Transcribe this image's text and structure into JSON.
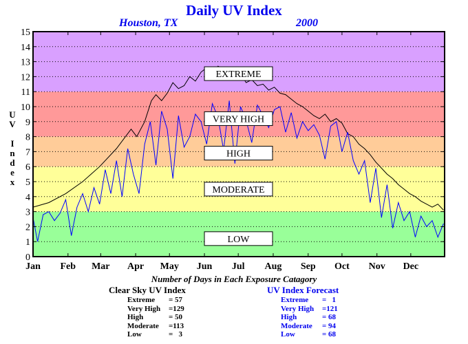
{
  "header": {
    "title": "Daily UV Index",
    "city": "Houston, TX",
    "year": "2000"
  },
  "axes": {
    "ylabel": "UV Index"
  },
  "chart_data": {
    "type": "line",
    "title": "Daily UV Index",
    "subtitle": "Houston, TX   2000",
    "xlabel": "",
    "ylabel": "UV Index",
    "x_tick_labels": [
      "Jan",
      "Feb",
      "Mar",
      "Apr",
      "May",
      "Jun",
      "Jul",
      "Aug",
      "Sep",
      "Oct",
      "Nov",
      "Dec"
    ],
    "y_ticks": [
      0,
      1,
      2,
      3,
      4,
      5,
      6,
      7,
      8,
      9,
      10,
      11,
      12,
      13,
      14,
      15
    ],
    "ylim": [
      0,
      15
    ],
    "xlim_days": [
      1,
      366
    ],
    "grid": true,
    "bands": [
      {
        "label": "LOW",
        "range": [
          0,
          3
        ],
        "color": "#99ff99"
      },
      {
        "label": "MODERATE",
        "range": [
          3,
          6
        ],
        "color": "#ffff99"
      },
      {
        "label": "HIGH",
        "range": [
          6,
          8
        ],
        "color": "#ffcc99"
      },
      {
        "label": "VERY HIGH",
        "range": [
          8,
          11
        ],
        "color": "#ff9999"
      },
      {
        "label": "EXTREME",
        "range": [
          11,
          15
        ],
        "color": "#d9a0ff"
      }
    ],
    "band_label_values": [
      1.2,
      4.5,
      6.9,
      9.2,
      12.2
    ],
    "series": [
      {
        "color": "#000000",
        "x": [
          1,
          15,
          30,
          45,
          60,
          75,
          88,
          93,
          100,
          106,
          110,
          115,
          120,
          125,
          130,
          135,
          140,
          145,
          150,
          155,
          160,
          165,
          170,
          175,
          180,
          185,
          190,
          195,
          200,
          205,
          210,
          215,
          220,
          225,
          230,
          235,
          240,
          245,
          250,
          255,
          260,
          265,
          270,
          275,
          280,
          285,
          290,
          295,
          300,
          305,
          310,
          315,
          320,
          325,
          330,
          335,
          340,
          345,
          350,
          355,
          360,
          365
        ],
        "values": [
          3.3,
          3.6,
          4.2,
          5.0,
          6.0,
          7.2,
          8.5,
          8.0,
          9.0,
          10.4,
          10.8,
          10.4,
          10.9,
          11.6,
          11.2,
          11.4,
          12.0,
          11.7,
          12.3,
          12.6,
          12.2,
          12.7,
          12.5,
          12.6,
          12.0,
          12.2,
          11.6,
          11.8,
          11.4,
          11.5,
          11.1,
          11.3,
          10.9,
          10.8,
          10.5,
          10.2,
          10.0,
          9.7,
          9.4,
          9.2,
          9.5,
          9.0,
          9.2,
          8.9,
          8.2,
          8.0,
          7.5,
          7.2,
          6.8,
          6.3,
          5.9,
          5.5,
          5.2,
          4.8,
          4.5,
          4.2,
          4.0,
          3.7,
          3.5,
          3.3,
          3.5,
          3.1
        ]
      },
      {
        "color": "#0000ff",
        "x": [
          1,
          5,
          10,
          15,
          20,
          25,
          30,
          35,
          40,
          45,
          50,
          55,
          60,
          65,
          70,
          75,
          80,
          85,
          90,
          95,
          100,
          105,
          110,
          115,
          120,
          125,
          130,
          135,
          140,
          145,
          150,
          155,
          160,
          165,
          170,
          175,
          180,
          185,
          190,
          195,
          200,
          205,
          210,
          215,
          220,
          225,
          230,
          235,
          240,
          245,
          250,
          255,
          260,
          265,
          270,
          275,
          280,
          285,
          290,
          295,
          300,
          305,
          310,
          315,
          320,
          325,
          330,
          335,
          340,
          345,
          350,
          355,
          360,
          365
        ],
        "values": [
          2.6,
          1.0,
          2.8,
          3.0,
          2.4,
          2.9,
          3.8,
          1.4,
          3.3,
          4.2,
          3.0,
          4.6,
          3.5,
          5.8,
          4.2,
          6.4,
          4.0,
          7.2,
          5.5,
          4.2,
          7.5,
          9.0,
          6.1,
          9.7,
          8.5,
          5.2,
          9.4,
          7.3,
          8.0,
          9.5,
          9.0,
          7.5,
          10.2,
          9.3,
          7.1,
          10.4,
          6.2,
          10.0,
          9.1,
          7.6,
          10.1,
          9.4,
          8.6,
          9.8,
          10.0,
          8.3,
          9.6,
          7.9,
          9.0,
          8.4,
          8.8,
          8.1,
          6.5,
          8.7,
          9.0,
          7.0,
          8.3,
          6.4,
          5.5,
          6.4,
          3.6,
          5.9,
          2.6,
          4.8,
          1.9,
          3.6,
          2.4,
          3.0,
          1.3,
          2.7,
          2.0,
          2.4,
          1.3,
          2.2
        ]
      }
    ]
  },
  "stats": {
    "heading": "Number of Days in Each Exposure Catagory",
    "clear_sky": {
      "title": "Clear Sky UV Index",
      "rows": [
        {
          "name": "Extreme",
          "value": "= 57"
        },
        {
          "name": "Very High",
          "value": "=129"
        },
        {
          "name": "High",
          "value": "= 50"
        },
        {
          "name": "Moderate",
          "value": "=113"
        },
        {
          "name": "Low",
          "value": "=   3"
        }
      ]
    },
    "forecast": {
      "title": "UV Index Forecast",
      "rows": [
        {
          "name": "Extreme",
          "value": "=   1"
        },
        {
          "name": "Very High",
          "value": "=121"
        },
        {
          "name": "High",
          "value": "= 68"
        },
        {
          "name": "Moderate",
          "value": "= 94"
        },
        {
          "name": "Low",
          "value": "= 68"
        }
      ]
    }
  }
}
